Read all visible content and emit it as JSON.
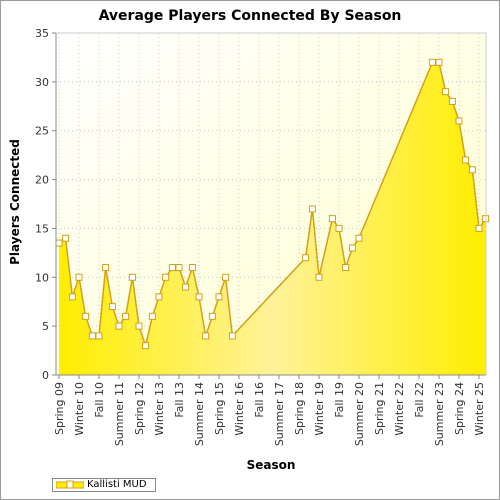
{
  "chart_data": {
    "type": "area",
    "title": "Average Players Connected By Season",
    "xlabel": "Season",
    "ylabel": "Players Connected",
    "ylim": [
      0,
      35
    ],
    "y_ticks": [
      0,
      5,
      10,
      15,
      20,
      25,
      30,
      35
    ],
    "x_tick_labels": [
      "Spring 09",
      "Winter 10",
      "Fall 10",
      "Summer 11",
      "Spring 12",
      "Winter 13",
      "Fall 13",
      "Summer 14",
      "Spring 15",
      "Winter 16",
      "Fall 16",
      "Summer 17",
      "Spring 18",
      "Winter 19",
      "Fall 19",
      "Summer 20",
      "Spring 21",
      "Winter 22",
      "Fall 22",
      "Summer 23",
      "Spring 24",
      "Winter 25"
    ],
    "grid": true,
    "legend_position": "bottom-left",
    "series": [
      {
        "name": "Kallisti MUD",
        "color": "#ffee00",
        "line_color": "#d4a017",
        "points": [
          {
            "x": 0.0,
            "y": 13.5
          },
          {
            "x": 0.33,
            "y": 14
          },
          {
            "x": 0.67,
            "y": 8
          },
          {
            "x": 1.0,
            "y": 10
          },
          {
            "x": 1.33,
            "y": 6
          },
          {
            "x": 1.67,
            "y": 4
          },
          {
            "x": 2.0,
            "y": 4
          },
          {
            "x": 2.33,
            "y": 11
          },
          {
            "x": 2.67,
            "y": 7
          },
          {
            "x": 3.0,
            "y": 5
          },
          {
            "x": 3.33,
            "y": 6
          },
          {
            "x": 3.67,
            "y": 10
          },
          {
            "x": 4.0,
            "y": 5
          },
          {
            "x": 4.33,
            "y": 3
          },
          {
            "x": 4.67,
            "y": 6
          },
          {
            "x": 5.0,
            "y": 8
          },
          {
            "x": 5.33,
            "y": 10
          },
          {
            "x": 5.67,
            "y": 11
          },
          {
            "x": 6.0,
            "y": 11
          },
          {
            "x": 6.33,
            "y": 9
          },
          {
            "x": 6.67,
            "y": 11
          },
          {
            "x": 7.0,
            "y": 8
          },
          {
            "x": 7.33,
            "y": 4
          },
          {
            "x": 7.67,
            "y": 6
          },
          {
            "x": 8.0,
            "y": 8
          },
          {
            "x": 8.33,
            "y": 10
          },
          {
            "x": 8.67,
            "y": 4
          },
          {
            "x": 12.33,
            "y": 12
          },
          {
            "x": 12.67,
            "y": 17
          },
          {
            "x": 13.0,
            "y": 10
          },
          {
            "x": 13.67,
            "y": 16
          },
          {
            "x": 14.0,
            "y": 15
          },
          {
            "x": 14.33,
            "y": 11
          },
          {
            "x": 14.67,
            "y": 13
          },
          {
            "x": 15.0,
            "y": 14
          },
          {
            "x": 18.67,
            "y": 32
          },
          {
            "x": 19.0,
            "y": 32
          },
          {
            "x": 19.33,
            "y": 29
          },
          {
            "x": 19.67,
            "y": 28
          },
          {
            "x": 20.0,
            "y": 26
          },
          {
            "x": 20.33,
            "y": 22
          },
          {
            "x": 20.67,
            "y": 21
          },
          {
            "x": 21.0,
            "y": 15
          },
          {
            "x": 21.33,
            "y": 16
          }
        ]
      }
    ]
  }
}
